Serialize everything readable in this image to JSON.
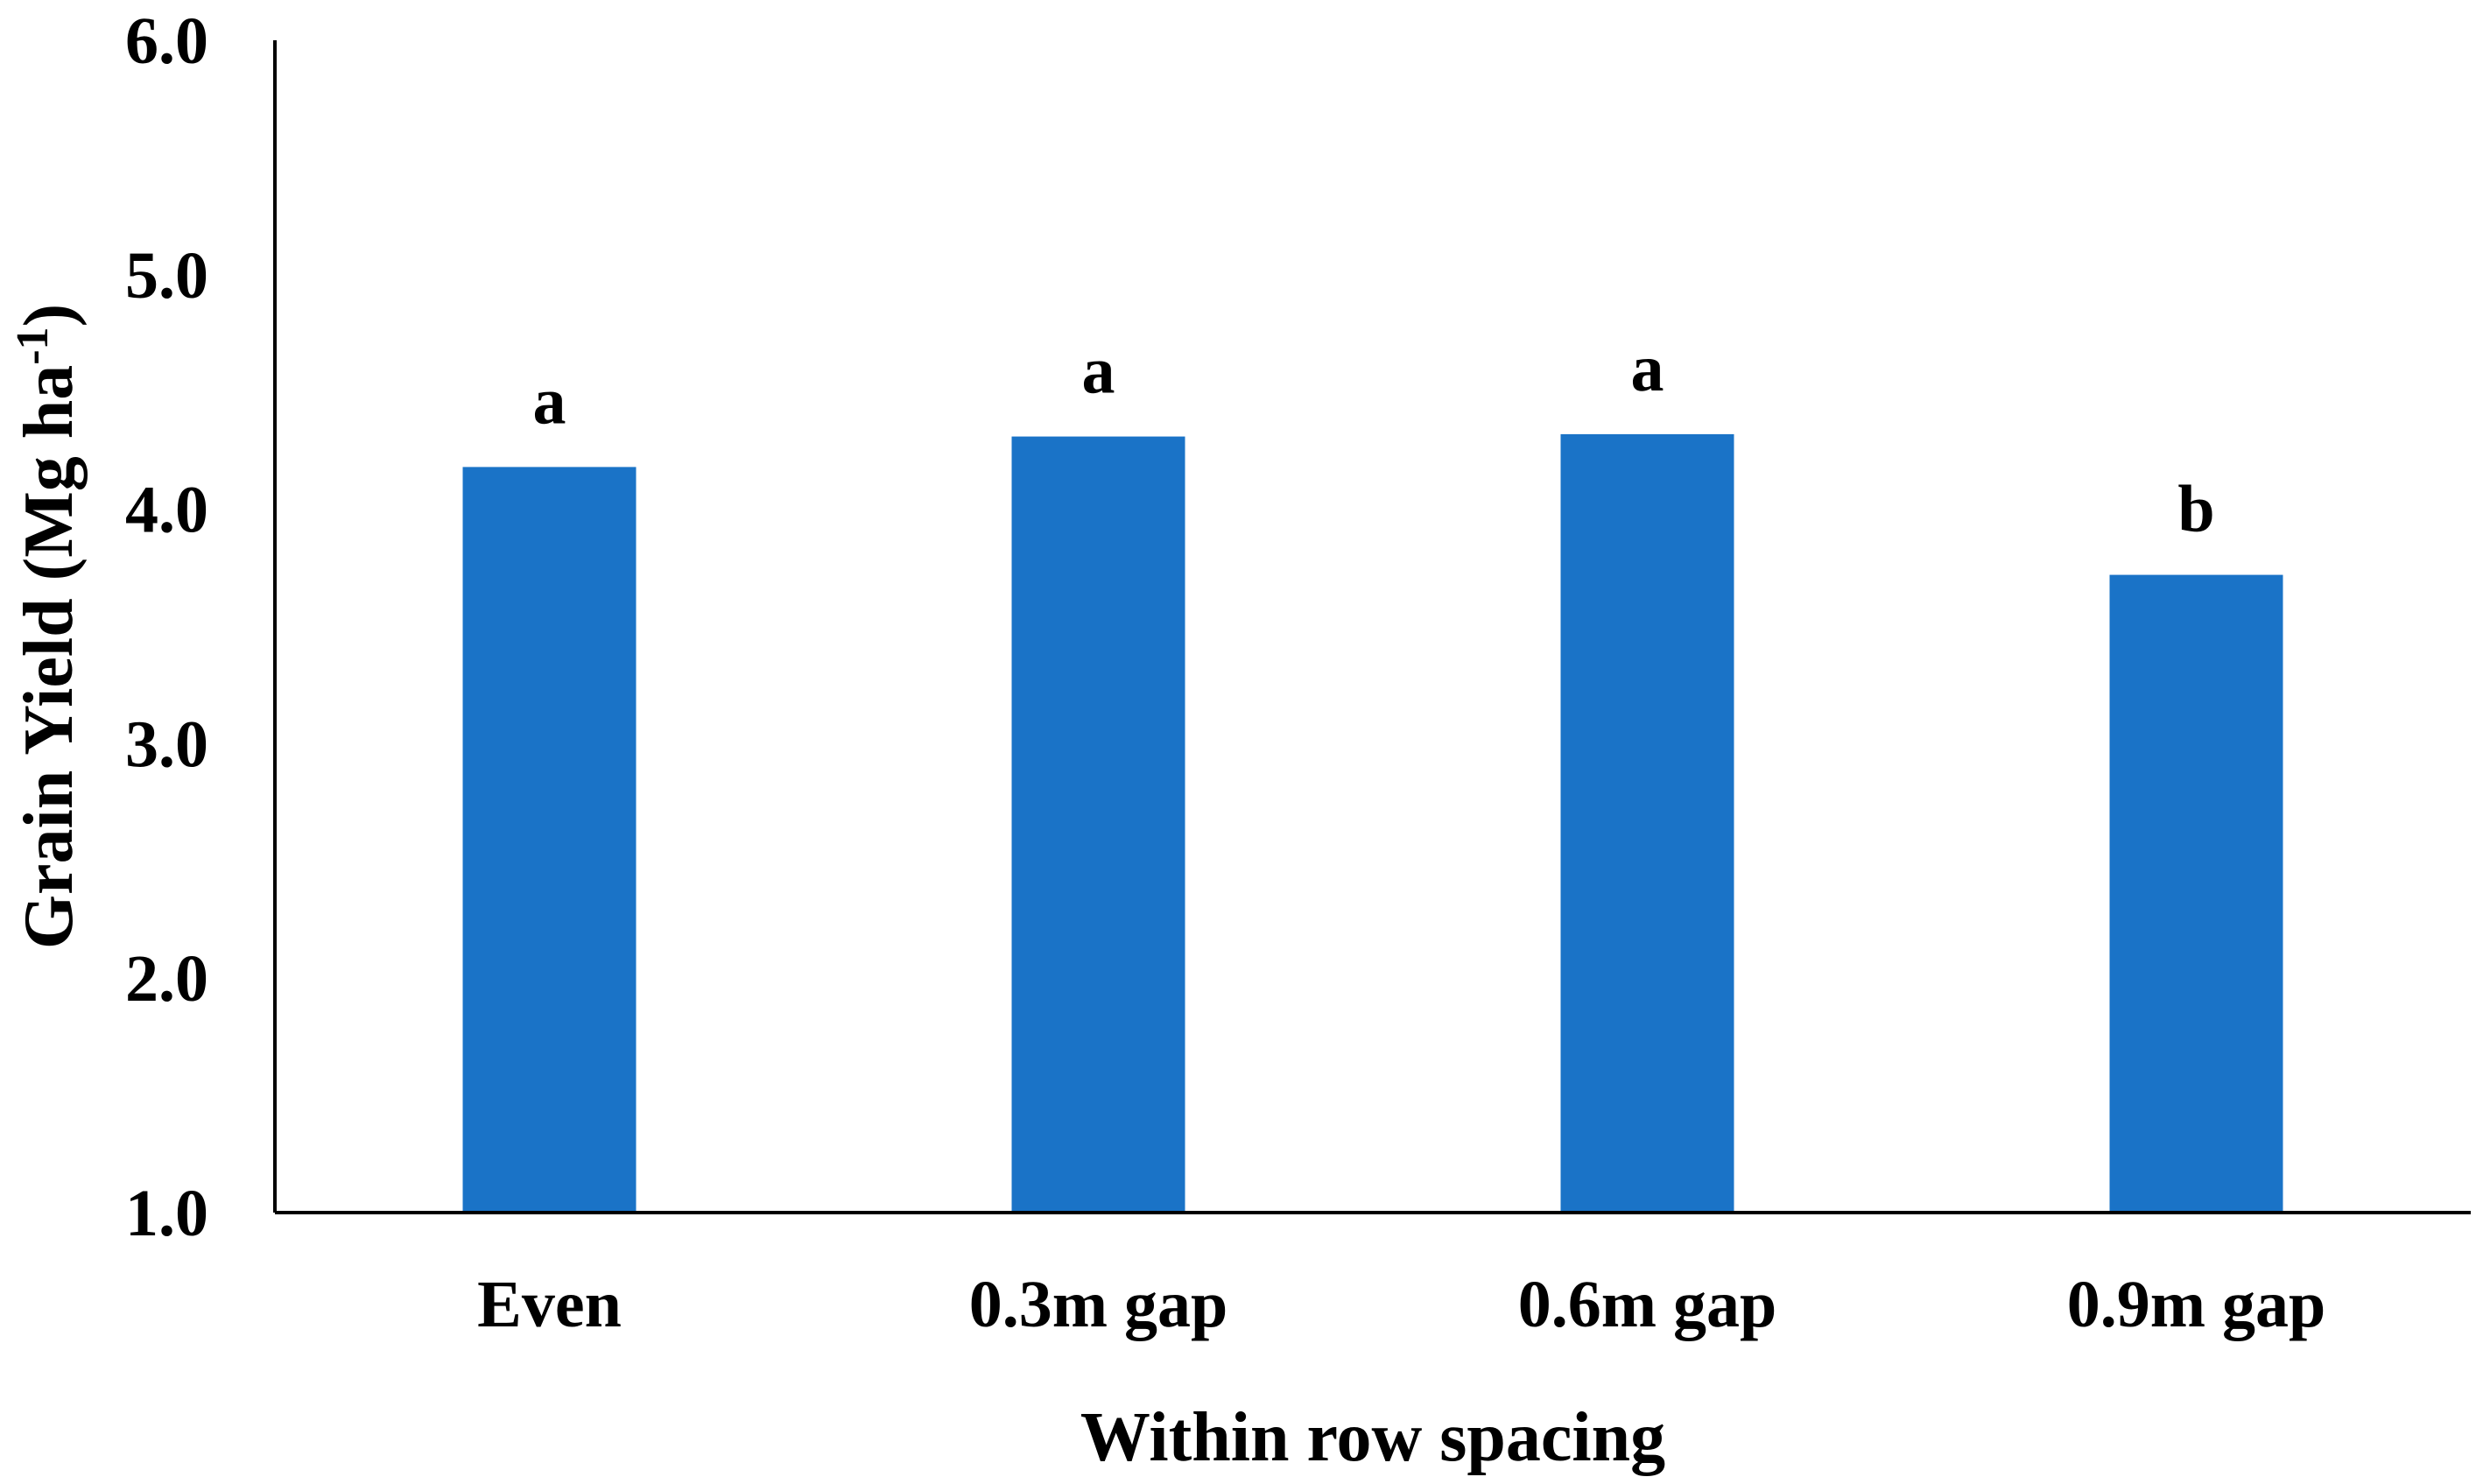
{
  "chart_data": {
    "type": "bar",
    "categories": [
      "Even",
      "0.3m gap",
      "0.6m gap",
      "0.9m gap"
    ],
    "values": [
      4.18,
      4.31,
      4.32,
      3.72
    ],
    "significance": [
      "a",
      "a",
      "a",
      "b"
    ],
    "xlabel": "Within row spacing",
    "ylabel": {
      "main": "Grain Yield (Mg ha",
      "superscript": "-1",
      "close": ")"
    },
    "ylim": [
      1.0,
      6.0
    ],
    "yticks": [
      "1.0",
      "2.0",
      "3.0",
      "4.0",
      "5.0",
      "6.0"
    ],
    "grid": false,
    "legend": "none",
    "bar_color": "#1a73c7"
  }
}
